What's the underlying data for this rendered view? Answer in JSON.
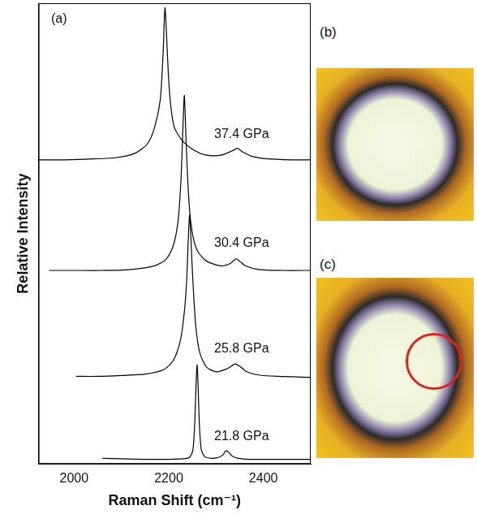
{
  "chart_data": {
    "type": "line",
    "x_label": "Raman Shift (cm⁻¹)",
    "y_label": "Relative Intensity",
    "xlim": [
      1925,
      2500
    ],
    "xticks": [
      2000,
      2200,
      2400
    ],
    "ylim": [
      0,
      10
    ],
    "tick_labels": "x",
    "grid": false,
    "annotations": [
      {
        "text": "(a)",
        "x": 1968,
        "y": 9.65
      },
      {
        "text": "37.4 GPa",
        "x": 2354,
        "y": 7.15
      },
      {
        "text": "30.4 GPa",
        "x": 2354,
        "y": 4.78
      },
      {
        "text": "25.8 GPa",
        "x": 2354,
        "y": 2.5
      },
      {
        "text": "21.8 GPa",
        "x": 2354,
        "y": 0.6
      }
    ],
    "series": [
      {
        "name": "21.8 GPa",
        "color": "#000000",
        "x": [
          2060,
          2100,
          2150,
          2200,
          2230,
          2244,
          2251,
          2255,
          2258,
          2260,
          2262,
          2265,
          2269,
          2276,
          2290,
          2305,
          2315,
          2320,
          2326,
          2334,
          2347,
          2370,
          2400,
          2450,
          2500
        ],
        "values": [
          0.12,
          0.11,
          0.1,
          0.1,
          0.11,
          0.14,
          0.3,
          0.9,
          1.8,
          2.15,
          1.7,
          0.8,
          0.3,
          0.16,
          0.12,
          0.14,
          0.2,
          0.28,
          0.26,
          0.17,
          0.12,
          0.1,
          0.1,
          0.1,
          0.1
        ]
      },
      {
        "name": "25.8 GPa",
        "color": "#000000",
        "x": [
          2004,
          2050,
          2100,
          2150,
          2190,
          2210,
          2225,
          2233,
          2238,
          2241,
          2244,
          2246,
          2249,
          2253,
          2258,
          2266,
          2280,
          2300,
          2320,
          2332,
          2340,
          2350,
          2365,
          2390,
          2430,
          2500
        ],
        "values": [
          1.9,
          1.9,
          1.92,
          1.95,
          2.05,
          2.25,
          2.7,
          3.3,
          4.0,
          4.8,
          5.4,
          5.1,
          4.4,
          3.6,
          2.9,
          2.4,
          2.1,
          2.0,
          2.05,
          2.12,
          2.17,
          2.12,
          2.0,
          1.93,
          1.9,
          1.88
        ]
      },
      {
        "name": "30.4 GPa",
        "color": "#000000",
        "x": [
          1947,
          2000,
          2060,
          2120,
          2170,
          2195,
          2210,
          2220,
          2226,
          2230,
          2233,
          2236,
          2240,
          2245,
          2252,
          2262,
          2280,
          2310,
          2330,
          2342,
          2350,
          2362,
          2390,
          2440,
          2500
        ],
        "values": [
          4.2,
          4.2,
          4.2,
          4.22,
          4.3,
          4.45,
          4.75,
          5.3,
          6.2,
          7.3,
          8.0,
          7.2,
          6.2,
          5.4,
          4.9,
          4.6,
          4.4,
          4.3,
          4.35,
          4.45,
          4.4,
          4.3,
          4.22,
          4.2,
          4.2
        ]
      },
      {
        "name": "37.4 GPa",
        "color": "#000000",
        "x": [
          1925,
          1980,
          2040,
          2090,
          2130,
          2155,
          2170,
          2182,
          2188,
          2192,
          2195,
          2199,
          2204,
          2212,
          2230,
          2255,
          2280,
          2310,
          2335,
          2345,
          2355,
          2375,
          2410,
          2460,
          2500
        ],
        "values": [
          6.6,
          6.6,
          6.62,
          6.65,
          6.75,
          6.95,
          7.3,
          7.9,
          8.9,
          9.9,
          9.4,
          8.5,
          7.8,
          7.3,
          7.0,
          6.8,
          6.7,
          6.7,
          6.8,
          6.85,
          6.78,
          6.68,
          6.62,
          6.6,
          6.6
        ]
      }
    ]
  },
  "panels": [
    {
      "label": "(b)"
    },
    {
      "label": "(c)"
    }
  ]
}
